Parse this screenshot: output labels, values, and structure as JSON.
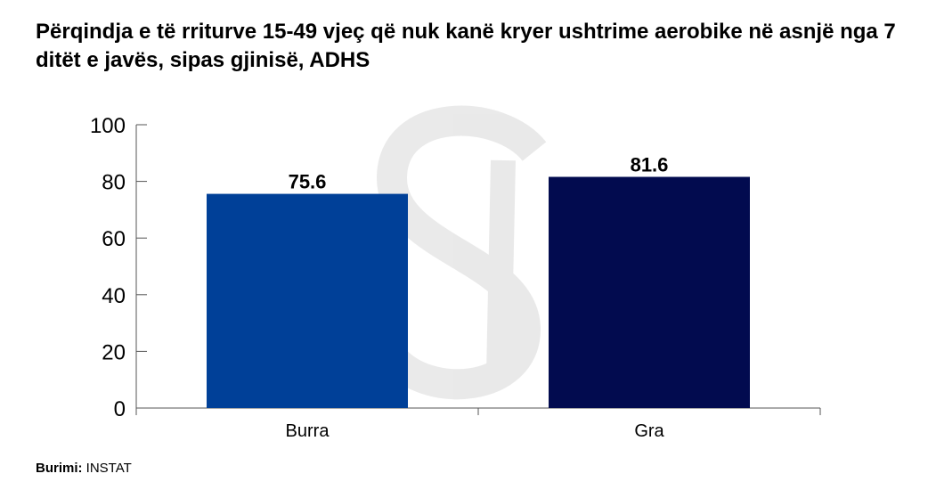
{
  "title": "Përqindja e të rriturve 15-49 vjeç që nuk kanë kryer ushtrime aerobike në asnjë nga 7 ditët e javës, sipas gjinisë, ADHS",
  "source": {
    "label": "Burimi:",
    "value": "INSTAT"
  },
  "chart_data": {
    "type": "bar",
    "categories": [
      "Burra",
      "Gra"
    ],
    "values": [
      75.6,
      81.6
    ],
    "value_labels": [
      "75.6",
      "81.6"
    ],
    "colors": [
      "#004098",
      "#020b4f"
    ],
    "ylim": [
      0,
      100
    ],
    "yticks": [
      0,
      20,
      40,
      60,
      80,
      100
    ],
    "xlabel": "",
    "ylabel": "",
    "grid": false,
    "legend": "none"
  }
}
